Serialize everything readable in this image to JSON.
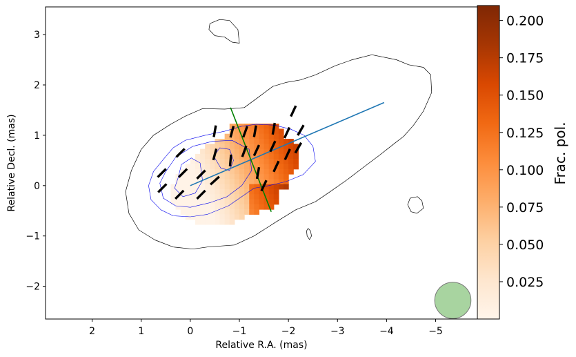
{
  "chart_data": {
    "type": "heatmap",
    "title": "",
    "xlabel": "Relative R.A. (mas)",
    "ylabel": "Relative Decl. (mas)",
    "xlim": [
      2.95,
      -5.85
    ],
    "ylim": [
      -2.65,
      3.55
    ],
    "x_ticks": [
      2,
      1,
      0,
      -1,
      -2,
      -3,
      -4,
      -5
    ],
    "x_tick_labels": [
      "2",
      "1",
      "0",
      "−1",
      "−2",
      "−3",
      "−4",
      "−5"
    ],
    "y_ticks": [
      3,
      2,
      1,
      0,
      -1,
      -2
    ],
    "y_tick_labels": [
      "3",
      "2",
      "1",
      "0",
      "−1",
      "−2"
    ],
    "colorbar": {
      "label": "Frac. pol.",
      "colormap": "Oranges",
      "range": [
        0.0,
        0.21
      ],
      "ticks": [
        0.025,
        0.05,
        0.075,
        0.1,
        0.125,
        0.15,
        0.175,
        0.2
      ],
      "tick_labels": [
        "0.025",
        "0.050",
        "0.075",
        "0.100",
        "0.125",
        "0.150",
        "0.175",
        "0.200"
      ]
    },
    "jet_axis_line": {
      "color": "#1f77b4",
      "from": [
        0.0,
        0.0
      ],
      "to": [
        -3.95,
        1.65
      ]
    },
    "perpendicular_line": {
      "color": "#008000",
      "from": [
        -0.82,
        1.55
      ],
      "to": [
        -1.65,
        -0.52
      ]
    },
    "beam": {
      "center": [
        -5.35,
        -2.28
      ],
      "radius": 0.37,
      "color": "#a8d4a0"
    },
    "outer_contour": [
      [
        0.75,
        1.0
      ],
      [
        1.0,
        0.72
      ],
      [
        1.2,
        0.3
      ],
      [
        1.32,
        -0.12
      ],
      [
        1.25,
        -0.55
      ],
      [
        1.05,
        -0.88
      ],
      [
        0.72,
        -1.08
      ],
      [
        0.35,
        -1.22
      ],
      [
        -0.05,
        -1.26
      ],
      [
        -0.35,
        -1.22
      ],
      [
        -0.9,
        -1.18
      ],
      [
        -1.3,
        -1.0
      ],
      [
        -1.75,
        -0.72
      ],
      [
        -2.15,
        -0.48
      ],
      [
        -2.55,
        -0.32
      ],
      [
        -2.85,
        -0.12
      ],
      [
        -3.2,
        0.12
      ],
      [
        -3.55,
        0.38
      ],
      [
        -3.85,
        0.6
      ],
      [
        -4.15,
        0.83
      ],
      [
        -4.35,
        0.98
      ],
      [
        -4.55,
        1.2
      ],
      [
        -4.75,
        1.48
      ],
      [
        -4.92,
        1.85
      ],
      [
        -4.9,
        2.2
      ],
      [
        -4.75,
        2.35
      ],
      [
        -4.45,
        2.4
      ],
      [
        -4.2,
        2.5
      ],
      [
        -3.7,
        2.6
      ],
      [
        -3.3,
        2.5
      ],
      [
        -2.95,
        2.38
      ],
      [
        -2.55,
        2.2
      ],
      [
        -2.25,
        2.1
      ],
      [
        -1.95,
        2.05
      ],
      [
        -1.68,
        1.97
      ],
      [
        -1.38,
        1.75
      ],
      [
        -1.1,
        1.55
      ],
      [
        -0.7,
        1.52
      ],
      [
        -0.25,
        1.53
      ],
      [
        0.1,
        1.38
      ],
      [
        0.4,
        1.22
      ]
    ],
    "outer_contour_islands": [
      [
        [
          -0.4,
          3.22
        ],
        [
          -0.6,
          3.3
        ],
        [
          -0.8,
          3.28
        ],
        [
          -0.97,
          3.1
        ],
        [
          -1.0,
          2.83
        ],
        [
          -0.85,
          2.85
        ],
        [
          -0.7,
          2.95
        ],
        [
          -0.5,
          2.98
        ],
        [
          -0.38,
          3.1
        ]
      ],
      [
        [
          -4.48,
          -0.25
        ],
        [
          -4.63,
          -0.22
        ],
        [
          -4.72,
          -0.3
        ],
        [
          -4.75,
          -0.45
        ],
        [
          -4.62,
          -0.55
        ],
        [
          -4.5,
          -0.52
        ],
        [
          -4.43,
          -0.38
        ]
      ],
      [
        [
          -2.4,
          -0.85
        ],
        [
          -2.45,
          -0.9
        ],
        [
          -2.47,
          -1.0
        ],
        [
          -2.43,
          -1.07
        ],
        [
          -2.38,
          -1.0
        ],
        [
          -2.37,
          -0.9
        ]
      ]
    ],
    "inner_contours": [
      [
        [
          0.55,
          0.52
        ],
        [
          0.75,
          0.28
        ],
        [
          0.85,
          0.0
        ],
        [
          0.8,
          -0.28
        ],
        [
          0.6,
          -0.48
        ],
        [
          0.35,
          -0.6
        ],
        [
          0.0,
          -0.62
        ],
        [
          -0.35,
          -0.57
        ],
        [
          -0.78,
          -0.4
        ],
        [
          -1.05,
          -0.22
        ],
        [
          -1.3,
          -0.05
        ],
        [
          -1.6,
          0.0
        ],
        [
          -1.95,
          0.08
        ],
        [
          -2.3,
          0.22
        ],
        [
          -2.55,
          0.48
        ],
        [
          -2.5,
          0.78
        ],
        [
          -2.32,
          1.0
        ],
        [
          -2.05,
          1.12
        ],
        [
          -1.72,
          1.2
        ],
        [
          -1.35,
          1.22
        ],
        [
          -1.05,
          1.18
        ],
        [
          -0.7,
          1.08
        ],
        [
          -0.3,
          1.0
        ],
        [
          0.1,
          0.9
        ],
        [
          0.35,
          0.75
        ]
      ],
      [
        [
          0.5,
          0.28
        ],
        [
          0.62,
          0.05
        ],
        [
          0.55,
          -0.25
        ],
        [
          0.3,
          -0.4
        ],
        [
          0.0,
          -0.43
        ],
        [
          -0.4,
          -0.34
        ],
        [
          -0.75,
          -0.22
        ],
        [
          -1.05,
          0.0
        ],
        [
          -1.25,
          0.3
        ],
        [
          -1.2,
          0.72
        ],
        [
          -0.85,
          0.9
        ],
        [
          -0.45,
          0.88
        ],
        [
          -0.05,
          0.78
        ],
        [
          0.3,
          0.56
        ]
      ],
      [
        [
          0.25,
          0.15
        ],
        [
          0.32,
          -0.05
        ],
        [
          0.15,
          -0.22
        ],
        [
          -0.1,
          -0.15
        ],
        [
          -0.25,
          0.1
        ],
        [
          -0.2,
          0.45
        ],
        [
          -0.02,
          0.55
        ],
        [
          0.18,
          0.42
        ]
      ],
      [
        [
          -0.48,
          0.58
        ],
        [
          -0.62,
          0.35
        ],
        [
          -0.8,
          0.3
        ],
        [
          -0.88,
          0.5
        ],
        [
          -0.8,
          0.72
        ],
        [
          -0.6,
          0.75
        ]
      ]
    ],
    "polarization_grid": {
      "x_start": 0.55,
      "dx": -0.1,
      "y_start": 1.18,
      "dy": -0.1,
      "rows": [
        "..............XXXXXXXXXX....",
        "..............XXXXXXXXXXX...",
        ".............XXXXXXXXXXXX...",
        "...........XXXXXXXXXXXXXXXX.",
        ".........XXXXXXXXXXXXXXXXXXX",
        "........XXXXXXXXXXXXXXXXXXXX",
        ".......XXXXXXXXXXXXXXXXXXXXX",
        "......XXXXXXXXXXXXXXXXXXXXXX",
        ".....XXXXXXXXXXXXXXXXXXXXXXX",
        "....XXXXXXXXXXXXXXXXXXXXXXX.",
        "...XXXXXXXXXXXXXXXXXXXXXXX..",
        "...XXXXXXXXXXXXXXXXXXXXXXX..",
        "..XXXXXXXXXXXXXXXXXXXXXXXX..",
        "..XXXXXXXXXXXXXXXXXXXXXX....",
        "..XXXXXXXXXXXXXXXXXXXXXX....",
        "..XXXXXXXXXXXXXXXXXXXXXX....",
        "...XXXXXXXXXXXXXXXXXXXX.....",
        "....XXXXXXXXXXXXXXXX........",
        ".....XXXXXXXXXXXX...........",
        ".......XXXXXXXX............."
      ],
      "max_frac_pol": 0.21
    },
    "evpa_vectors": [
      {
        "x": 0.57,
        "y": -0.05,
        "angle_deg": 45
      },
      {
        "x": 0.58,
        "y": 0.25,
        "angle_deg": 45
      },
      {
        "x": 0.2,
        "y": 0.65,
        "angle_deg": 45
      },
      {
        "x": 0.15,
        "y": 0.25,
        "angle_deg": 45
      },
      {
        "x": 0.22,
        "y": -0.18,
        "angle_deg": 45
      },
      {
        "x": -0.22,
        "y": 0.22,
        "angle_deg": 45
      },
      {
        "x": -0.22,
        "y": -0.18,
        "angle_deg": 45
      },
      {
        "x": -0.5,
        "y": 0.1,
        "angle_deg": 48
      },
      {
        "x": -0.5,
        "y": 0.62,
        "angle_deg": 15
      },
      {
        "x": -0.5,
        "y": 1.08,
        "angle_deg": 10
      },
      {
        "x": -0.82,
        "y": 0.5,
        "angle_deg": 5
      },
      {
        "x": -0.85,
        "y": 1.07,
        "angle_deg": 15
      },
      {
        "x": -1.1,
        "y": 0.68,
        "angle_deg": 20
      },
      {
        "x": -1.12,
        "y": 1.07,
        "angle_deg": 20
      },
      {
        "x": -1.35,
        "y": 0.7,
        "angle_deg": 25
      },
      {
        "x": -1.32,
        "y": 1.08,
        "angle_deg": 10
      },
      {
        "x": -1.38,
        "y": 0.25,
        "angle_deg": 10
      },
      {
        "x": -1.5,
        "y": 0.0,
        "angle_deg": 25
      },
      {
        "x": -1.68,
        "y": 0.78,
        "angle_deg": 25
      },
      {
        "x": -1.7,
        "y": 1.13,
        "angle_deg": 10
      },
      {
        "x": -1.75,
        "y": 0.38,
        "angle_deg": 25
      },
      {
        "x": -1.98,
        "y": 0.62,
        "angle_deg": 25
      },
      {
        "x": -1.97,
        "y": 1.05,
        "angle_deg": 25
      },
      {
        "x": -2.1,
        "y": 1.48,
        "angle_deg": 25
      },
      {
        "x": -2.2,
        "y": 0.75,
        "angle_deg": 30
      },
      {
        "x": -2.25,
        "y": 1.1,
        "angle_deg": 30
      }
    ]
  }
}
